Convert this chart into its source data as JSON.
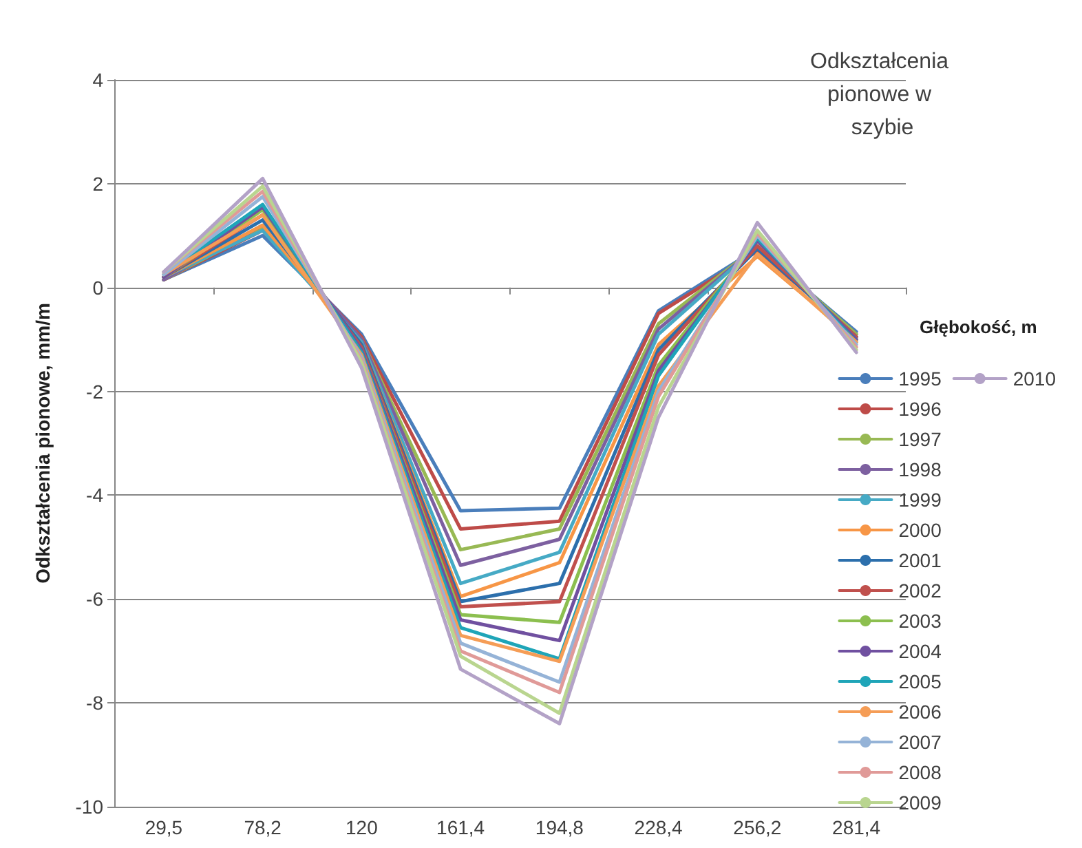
{
  "chart_data": {
    "type": "line",
    "title": "Odkształcenia pionowe w szybie",
    "xlabel": "Głębokość, m",
    "ylabel": "Odkształcenia pionowe, mm/m",
    "categories": [
      "29,5",
      "78,2",
      "120",
      "161,4",
      "194,8",
      "228,4",
      "256,2",
      "281,4"
    ],
    "ylim": [
      -10,
      4
    ],
    "yticks": [
      -10,
      -8,
      -6,
      -4,
      -2,
      0,
      2,
      4
    ],
    "grid": "y",
    "legend": "right",
    "marker": "none",
    "line_style": "solid",
    "series": [
      {
        "name": "1995",
        "color": "#4a7ebb",
        "values": [
          0.15,
          1.0,
          -0.9,
          -4.3,
          -4.25,
          -0.45,
          0.75,
          -0.85
        ]
      },
      {
        "name": "1996",
        "color": "#be4b48",
        "values": [
          0.15,
          1.1,
          -0.95,
          -4.65,
          -4.5,
          -0.5,
          0.7,
          -0.9
        ]
      },
      {
        "name": "1997",
        "color": "#98b954",
        "values": [
          0.15,
          1.15,
          -1.0,
          -5.05,
          -4.65,
          -0.7,
          0.8,
          -0.9
        ]
      },
      {
        "name": "1998",
        "color": "#7d60a0",
        "values": [
          0.15,
          1.2,
          -1.0,
          -5.35,
          -4.85,
          -0.8,
          0.8,
          -0.95
        ]
      },
      {
        "name": "1999",
        "color": "#46aac5",
        "values": [
          0.2,
          1.1,
          -1.05,
          -5.7,
          -5.1,
          -0.9,
          0.8,
          -1.0
        ]
      },
      {
        "name": "2000",
        "color": "#f79646",
        "values": [
          0.2,
          1.2,
          -1.1,
          -5.95,
          -5.3,
          -1.1,
          0.6,
          -1.0
        ]
      },
      {
        "name": "2001",
        "color": "#2c6fac",
        "values": [
          0.2,
          1.3,
          -1.1,
          -6.05,
          -5.7,
          -1.2,
          0.75,
          -0.95
        ]
      },
      {
        "name": "2002",
        "color": "#c0504d",
        "values": [
          0.2,
          1.4,
          -1.15,
          -6.15,
          -6.05,
          -1.3,
          0.8,
          -0.95
        ]
      },
      {
        "name": "2003",
        "color": "#8cbf4f",
        "values": [
          0.2,
          1.5,
          -1.2,
          -6.3,
          -6.45,
          -1.5,
          0.9,
          -1.0
        ]
      },
      {
        "name": "2004",
        "color": "#7050a0",
        "values": [
          0.2,
          1.55,
          -1.2,
          -6.4,
          -6.8,
          -1.6,
          0.9,
          -1.0
        ]
      },
      {
        "name": "2005",
        "color": "#1fa5b8",
        "values": [
          0.25,
          1.6,
          -1.25,
          -6.55,
          -7.15,
          -1.7,
          0.95,
          -1.05
        ]
      },
      {
        "name": "2006",
        "color": "#f59d56",
        "values": [
          0.25,
          1.4,
          -1.3,
          -6.7,
          -7.2,
          -1.9,
          0.65,
          -1.05
        ]
      },
      {
        "name": "2007",
        "color": "#95b3d7",
        "values": [
          0.25,
          1.75,
          -1.35,
          -6.85,
          -7.6,
          -2.0,
          1.0,
          -1.1
        ]
      },
      {
        "name": "2008",
        "color": "#e09a98",
        "values": [
          0.3,
          1.85,
          -1.4,
          -7.0,
          -7.8,
          -2.1,
          1.05,
          -1.15
        ]
      },
      {
        "name": "2009",
        "color": "#b9d58f",
        "values": [
          0.3,
          1.95,
          -1.45,
          -7.1,
          -8.2,
          -2.3,
          1.1,
          -1.2
        ]
      },
      {
        "name": "2010",
        "color": "#b3a2c7",
        "values": [
          0.3,
          2.1,
          -1.55,
          -7.35,
          -8.4,
          -2.5,
          1.25,
          -1.25
        ]
      }
    ]
  }
}
